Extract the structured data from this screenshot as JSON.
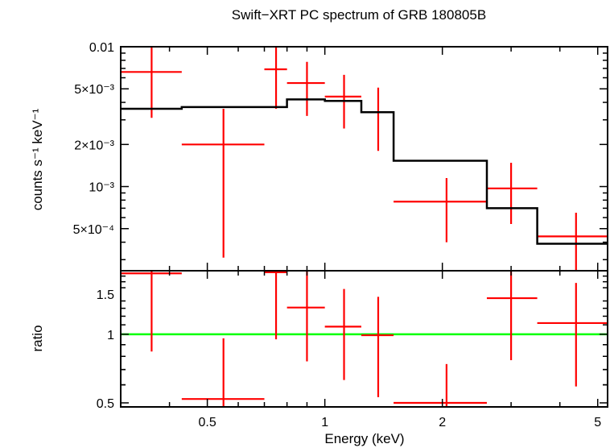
{
  "chart_data": [
    {
      "type": "line",
      "title": "Swift−XRT PC spectrum of GRB 180805B",
      "ylabel": "counts s⁻¹ keV⁻¹",
      "xscale": "log",
      "yscale": "log",
      "xlim": [
        0.3,
        5.3
      ],
      "ylim": [
        0.00025,
        0.01
      ],
      "yticks": [
        {
          "value": 0.01,
          "label": "0.01"
        },
        {
          "value": 0.005,
          "label": "5×10⁻³"
        },
        {
          "value": 0.002,
          "label": "2×10⁻³"
        },
        {
          "value": 0.001,
          "label": "10⁻³"
        },
        {
          "value": 0.0005,
          "label": "5×10⁻⁴"
        }
      ],
      "series": [
        {
          "kind": "data-with-errors",
          "color": "#ff0000",
          "points": [
            {
              "x": 0.36,
              "xlo": 0.3,
              "xhi": 0.43,
              "y": 0.0066,
              "ylo": 0.0031,
              "yhi": 0.0102
            },
            {
              "x": 0.55,
              "xlo": 0.43,
              "xhi": 0.7,
              "y": 0.002,
              "ylo": 0.00031,
              "yhi": 0.0036
            },
            {
              "x": 0.75,
              "xlo": 0.7,
              "xhi": 0.8,
              "y": 0.0069,
              "ylo": 0.0036,
              "yhi": 0.0102
            },
            {
              "x": 0.9,
              "xlo": 0.8,
              "xhi": 1.0,
              "y": 0.0055,
              "ylo": 0.0032,
              "yhi": 0.0078
            },
            {
              "x": 1.12,
              "xlo": 1.0,
              "xhi": 1.24,
              "y": 0.0044,
              "ylo": 0.0026,
              "yhi": 0.0063
            },
            {
              "x": 1.37,
              "xlo": 1.24,
              "xhi": 1.5,
              "y": 0.0034,
              "ylo": 0.0018,
              "yhi": 0.0051
            },
            {
              "x": 2.05,
              "xlo": 1.5,
              "xhi": 2.6,
              "y": 0.00078,
              "ylo": 0.0004,
              "yhi": 0.00115
            },
            {
              "x": 3.0,
              "xlo": 2.6,
              "xhi": 3.5,
              "y": 0.00097,
              "ylo": 0.00054,
              "yhi": 0.00148
            },
            {
              "x": 4.4,
              "xlo": 3.5,
              "xhi": 5.3,
              "y": 0.00044,
              "ylo": 0.00023,
              "yhi": 0.00065
            }
          ]
        },
        {
          "kind": "model-step",
          "color": "#000000",
          "steps": [
            {
              "x0": 0.3,
              "x1": 0.43,
              "y": 0.0036
            },
            {
              "x0": 0.43,
              "x1": 0.8,
              "y": 0.0037
            },
            {
              "x0": 0.8,
              "x1": 1.0,
              "y": 0.0042
            },
            {
              "x0": 1.0,
              "x1": 1.24,
              "y": 0.0041
            },
            {
              "x0": 1.24,
              "x1": 1.5,
              "y": 0.0034
            },
            {
              "x0": 1.5,
              "x1": 2.6,
              "y": 0.00153
            },
            {
              "x0": 2.6,
              "x1": 3.5,
              "y": 0.0007
            },
            {
              "x0": 3.5,
              "x1": 5.3,
              "y": 0.00039
            }
          ]
        }
      ]
    },
    {
      "type": "line",
      "xlabel": "Energy (keV)",
      "ylabel": "ratio",
      "xscale": "log",
      "yscale": "log",
      "xlim": [
        0.3,
        5.3
      ],
      "ylim": [
        0.48,
        1.9
      ],
      "xticks": [
        {
          "value": 0.5,
          "label": "0.5"
        },
        {
          "value": 1,
          "label": "1"
        },
        {
          "value": 2,
          "label": "2"
        },
        {
          "value": 5,
          "label": "5"
        }
      ],
      "yticks": [
        {
          "value": 0.5,
          "label": "0.5"
        },
        {
          "value": 1,
          "label": "1"
        },
        {
          "value": 1.5,
          "label": "1.5"
        }
      ],
      "reference_line": {
        "y": 1,
        "color": "#00ff00"
      },
      "series": [
        {
          "kind": "ratio-with-errors",
          "color": "#ff0000",
          "points": [
            {
              "x": 0.36,
              "xlo": 0.3,
              "xhi": 0.43,
              "y": 1.85,
              "ylo": 0.84,
              "yhi": 1.9
            },
            {
              "x": 0.55,
              "xlo": 0.43,
              "xhi": 0.7,
              "y": 0.52,
              "ylo": 0.48,
              "yhi": 0.96
            },
            {
              "x": 0.75,
              "xlo": 0.7,
              "xhi": 0.8,
              "y": 1.87,
              "ylo": 0.95,
              "yhi": 1.9
            },
            {
              "x": 0.9,
              "xlo": 0.8,
              "xhi": 1.0,
              "y": 1.31,
              "ylo": 0.76,
              "yhi": 1.9
            },
            {
              "x": 1.12,
              "xlo": 1.0,
              "xhi": 1.24,
              "y": 1.08,
              "ylo": 0.63,
              "yhi": 1.58
            },
            {
              "x": 1.37,
              "xlo": 1.24,
              "xhi": 1.5,
              "y": 0.99,
              "ylo": 0.53,
              "yhi": 1.46
            },
            {
              "x": 2.05,
              "xlo": 1.5,
              "xhi": 2.6,
              "y": 0.5,
              "ylo": 0.48,
              "yhi": 0.74
            },
            {
              "x": 3.0,
              "xlo": 2.6,
              "xhi": 3.5,
              "y": 1.44,
              "ylo": 0.77,
              "yhi": 1.9
            },
            {
              "x": 4.4,
              "xlo": 3.5,
              "xhi": 5.3,
              "y": 1.12,
              "ylo": 0.59,
              "yhi": 1.68
            }
          ]
        }
      ]
    }
  ]
}
